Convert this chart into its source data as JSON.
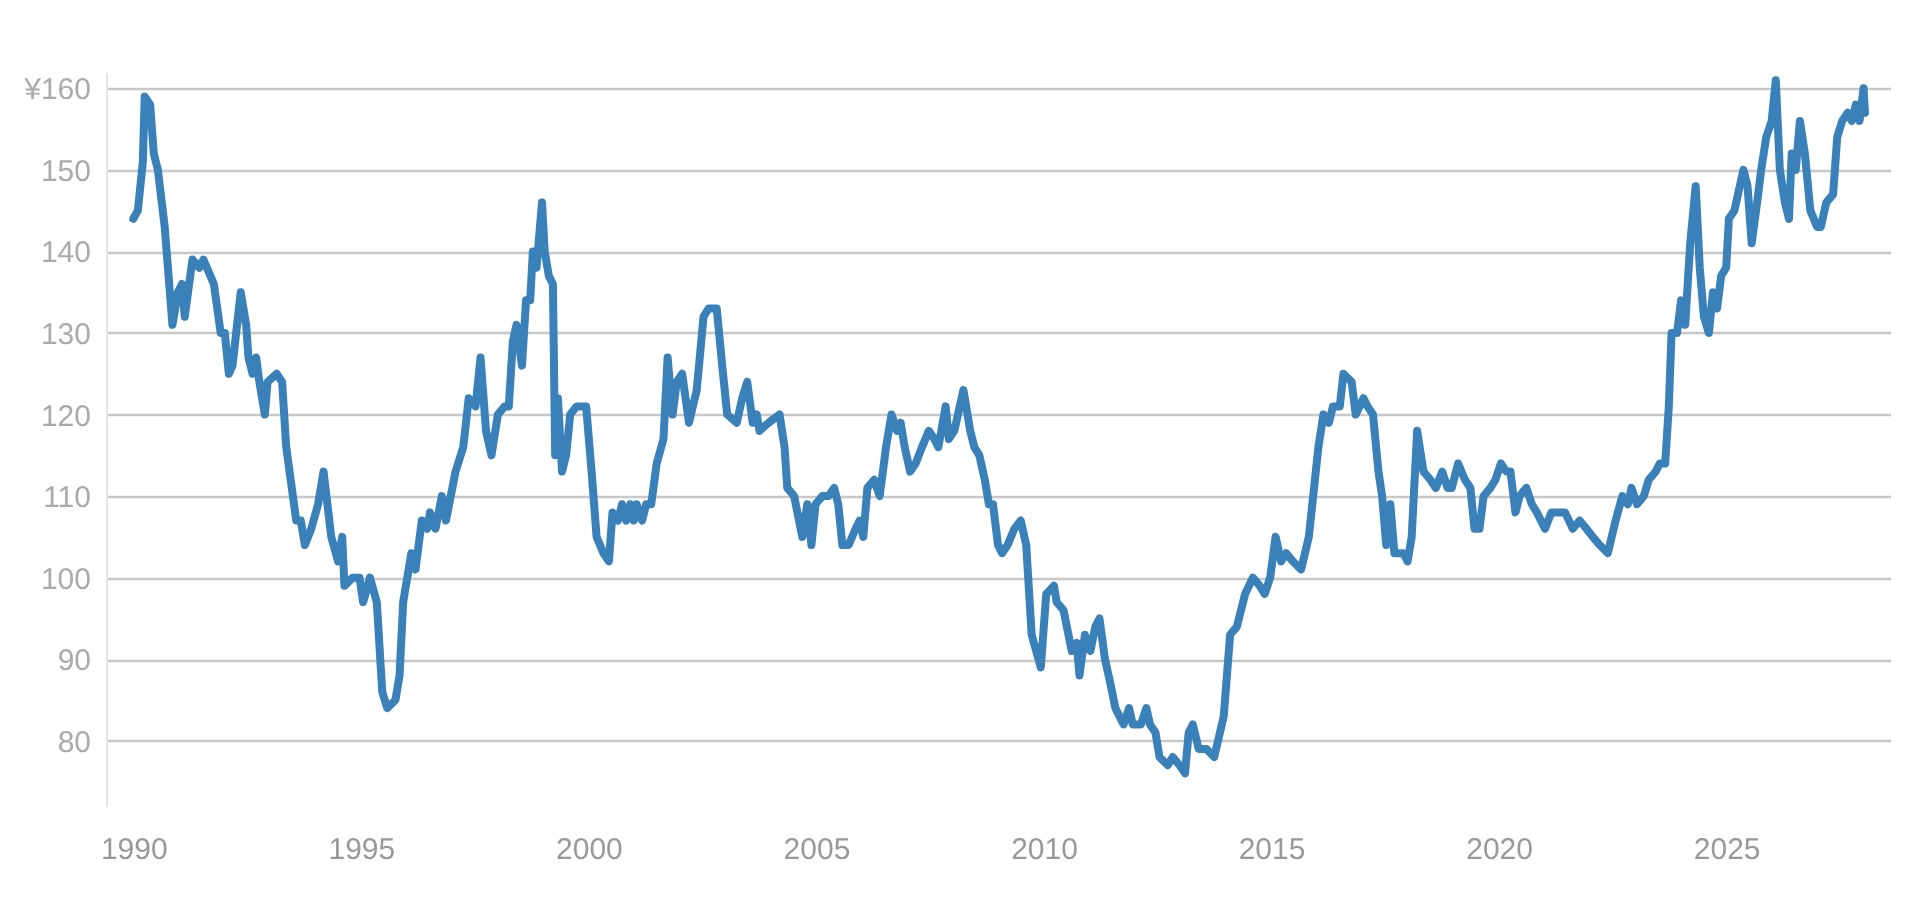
{
  "chart_data": {
    "type": "line",
    "color": "#3a80b9",
    "grid": "y",
    "xlim": [
      1989.4,
      2028.6
    ],
    "ylim": [
      72,
      162
    ],
    "xticks": [
      1990,
      1995,
      2000,
      2005,
      2010,
      2015,
      2020,
      2025
    ],
    "yticks": [
      80,
      90,
      100,
      110,
      120,
      130,
      140,
      150,
      {
        "value": 160,
        "label": "¥160"
      }
    ],
    "x": [
      1990.0,
      1990.1,
      1990.21,
      1990.25,
      1990.37,
      1990.45,
      1990.54,
      1990.69,
      1990.86,
      1990.98,
      1991.07,
      1991.13,
      1991.3,
      1991.45,
      1991.54,
      1991.77,
      1991.92,
      1992.01,
      1992.1,
      1992.18,
      1992.36,
      1992.48,
      1992.53,
      1992.62,
      1992.7,
      1992.77,
      1992.89,
      1992.95,
      1993.15,
      1993.27,
      1993.36,
      1993.58,
      1993.68,
      1993.77,
      1993.91,
      1994.06,
      1994.18,
      1994.35,
      1994.5,
      1994.59,
      1994.64,
      1994.82,
      1994.97,
      1995.05,
      1995.2,
      1995.35,
      1995.47,
      1995.58,
      1995.76,
      1995.85,
      1995.93,
      1996.11,
      1996.2,
      1996.34,
      1996.46,
      1996.52,
      1996.64,
      1996.78,
      1996.87,
      1997.08,
      1997.25,
      1997.37,
      1997.52,
      1997.63,
      1997.75,
      1997.87,
      1998.01,
      1998.16,
      1998.25,
      1998.34,
      1998.42,
      1998.54,
      1998.63,
      1998.72,
      1998.78,
      1998.86,
      1998.98,
      1999.04,
      1999.13,
      1999.22,
      1999.27,
      1999.33,
      1999.42,
      1999.51,
      1999.6,
      1999.74,
      1999.89,
      1999.95,
      2000.07,
      2000.18,
      2000.33,
      2000.45,
      2000.53,
      2000.65,
      2000.74,
      2000.83,
      2000.92,
      2001.0,
      2001.06,
      2001.18,
      2001.27,
      2001.38,
      2001.5,
      2001.65,
      2001.74,
      2001.85,
      2001.94,
      2002.06,
      2002.21,
      2002.38,
      2002.53,
      2002.64,
      2002.82,
      2002.94,
      2003.05,
      2003.26,
      2003.38,
      2003.49,
      2003.61,
      2003.7,
      2003.76,
      2003.96,
      2004.2,
      2004.31,
      2004.37,
      2004.52,
      2004.7,
      2004.81,
      2004.9,
      2004.99,
      2005.14,
      2005.28,
      2005.4,
      2005.49,
      2005.58,
      2005.72,
      2005.87,
      2005.96,
      2006.04,
      2006.13,
      2006.28,
      2006.4,
      2006.54,
      2006.66,
      2006.78,
      2006.86,
      2006.95,
      2007.07,
      2007.19,
      2007.33,
      2007.48,
      2007.6,
      2007.69,
      2007.85,
      2007.92,
      2008.04,
      2008.24,
      2008.39,
      2008.48,
      2008.59,
      2008.71,
      2008.8,
      2008.89,
      2009.0,
      2009.09,
      2009.21,
      2009.36,
      2009.5,
      2009.62,
      2009.74,
      2009.94,
      2010.06,
      2010.23,
      2010.29,
      2010.44,
      2010.62,
      2010.73,
      2010.79,
      2010.91,
      2011.03,
      2011.14,
      2011.23,
      2011.35,
      2011.47,
      2011.58,
      2011.76,
      2011.88,
      2011.96,
      2012.14,
      2012.26,
      2012.34,
      2012.46,
      2012.55,
      2012.73,
      2012.84,
      2012.99,
      2013.11,
      2013.19,
      2013.28,
      2013.41,
      2013.58,
      2013.75,
      2013.96,
      2014.1,
      2014.25,
      2014.43,
      2014.6,
      2014.75,
      2014.86,
      2014.98,
      2015.1,
      2015.22,
      2015.33,
      2015.48,
      2015.66,
      2015.83,
      2016.04,
      2016.15,
      2016.27,
      2016.36,
      2016.51,
      2016.59,
      2016.77,
      2016.86,
      2017.03,
      2017.12,
      2017.24,
      2017.36,
      2017.44,
      2017.53,
      2017.62,
      2017.71,
      2017.91,
      2018.0,
      2018.09,
      2018.21,
      2018.35,
      2018.5,
      2018.62,
      2018.76,
      2018.88,
      2018.97,
      2019.11,
      2019.26,
      2019.38,
      2019.47,
      2019.58,
      2019.67,
      2019.82,
      2019.93,
      2020.05,
      2020.17,
      2020.26,
      2020.37,
      2020.46,
      2020.61,
      2020.73,
      2020.84,
      2021.02,
      2021.16,
      2021.31,
      2021.46,
      2021.63,
      2021.78,
      2021.93,
      2022.07,
      2022.22,
      2022.4,
      2022.57,
      2022.72,
      2022.84,
      2022.92,
      2023.04,
      2023.19,
      2023.3,
      2023.45,
      2023.54,
      2023.66,
      2023.74,
      2023.8,
      2023.92,
      2024.01,
      2024.1,
      2024.21,
      2024.33,
      2024.42,
      2024.51,
      2024.62,
      2024.71,
      2024.8,
      2024.89,
      2025.0,
      2025.06,
      2025.18,
      2025.3,
      2025.38,
      2025.47,
      2025.56,
      2025.68,
      2025.77,
      2025.88,
      2026.0,
      2026.09,
      2026.18,
      2026.29,
      2026.38,
      2026.44,
      2026.53,
      2026.62,
      2026.73,
      2026.85,
      2027.0,
      2027.08,
      2027.2,
      2027.35,
      2027.44,
      2027.55,
      2027.67,
      2027.76,
      2027.85,
      2027.93,
      2028.02,
      2028.05
    ],
    "values": [
      144,
      145,
      151,
      159,
      158,
      152,
      150,
      143,
      131,
      135,
      136,
      132,
      139,
      138,
      139,
      136,
      130,
      130,
      125,
      126,
      135,
      131,
      127,
      125,
      127,
      124,
      120,
      124,
      125,
      124,
      116,
      107,
      107,
      104,
      106,
      109,
      113,
      105,
      102,
      105,
      99,
      100,
      100,
      97,
      100,
      97,
      86,
      84,
      85,
      88,
      97,
      103,
      101,
      107,
      106,
      108,
      106,
      110,
      107,
      113,
      116,
      122,
      121,
      127,
      118,
      115,
      120,
      121,
      121,
      129,
      131,
      126,
      134,
      134,
      140,
      138,
      146,
      140,
      137,
      136,
      115,
      122,
      113,
      115,
      120,
      121,
      121,
      121,
      113,
      105,
      103,
      102,
      108,
      107,
      109,
      107,
      109,
      107,
      109,
      107,
      109,
      109,
      114,
      117,
      127,
      120,
      124,
      125,
      119,
      123,
      132,
      133,
      133,
      126,
      120,
      119,
      122,
      124,
      119,
      120,
      118,
      119,
      120,
      116,
      111,
      110,
      105,
      109,
      104,
      109,
      110,
      110,
      111,
      109,
      104,
      104,
      106,
      107,
      105,
      111,
      112,
      110,
      116,
      120,
      118,
      119,
      116,
      113,
      114,
      116,
      118,
      117,
      116,
      121,
      117,
      118,
      123,
      118,
      116,
      115,
      112,
      109,
      109,
      104,
      103,
      104,
      106,
      107,
      104,
      93,
      89,
      98,
      99,
      97,
      96,
      91,
      92,
      88,
      93,
      91,
      94,
      95,
      90,
      87,
      84,
      82,
      84,
      82,
      82,
      84,
      82,
      81,
      78,
      77,
      78,
      77,
      76,
      81,
      82,
      79,
      79,
      78,
      83,
      93,
      94,
      98,
      100,
      99,
      98,
      100,
      105,
      102,
      103,
      102,
      101,
      105,
      116,
      120,
      119,
      121,
      121,
      125,
      124,
      120,
      122,
      121,
      120,
      113,
      110,
      104,
      109,
      103,
      103,
      102,
      105,
      118,
      113,
      112,
      111,
      113,
      111,
      111,
      114,
      112,
      111,
      106,
      106,
      110,
      111,
      112,
      114,
      113,
      113,
      108,
      110,
      111,
      109,
      108,
      106,
      108,
      108,
      108,
      106,
      107,
      106,
      105,
      104,
      103,
      107,
      110,
      109,
      111,
      109,
      110,
      112,
      113,
      114,
      114,
      121,
      130,
      130,
      134,
      131,
      141,
      148,
      138,
      132,
      130,
      135,
      133,
      137,
      138,
      144,
      145,
      148,
      150,
      148,
      141,
      146,
      150,
      154,
      156,
      161,
      150,
      146,
      144,
      152,
      150,
      156,
      152,
      145,
      143,
      143,
      146,
      147,
      154,
      156,
      157,
      156,
      158,
      156,
      160,
      157
    ]
  }
}
